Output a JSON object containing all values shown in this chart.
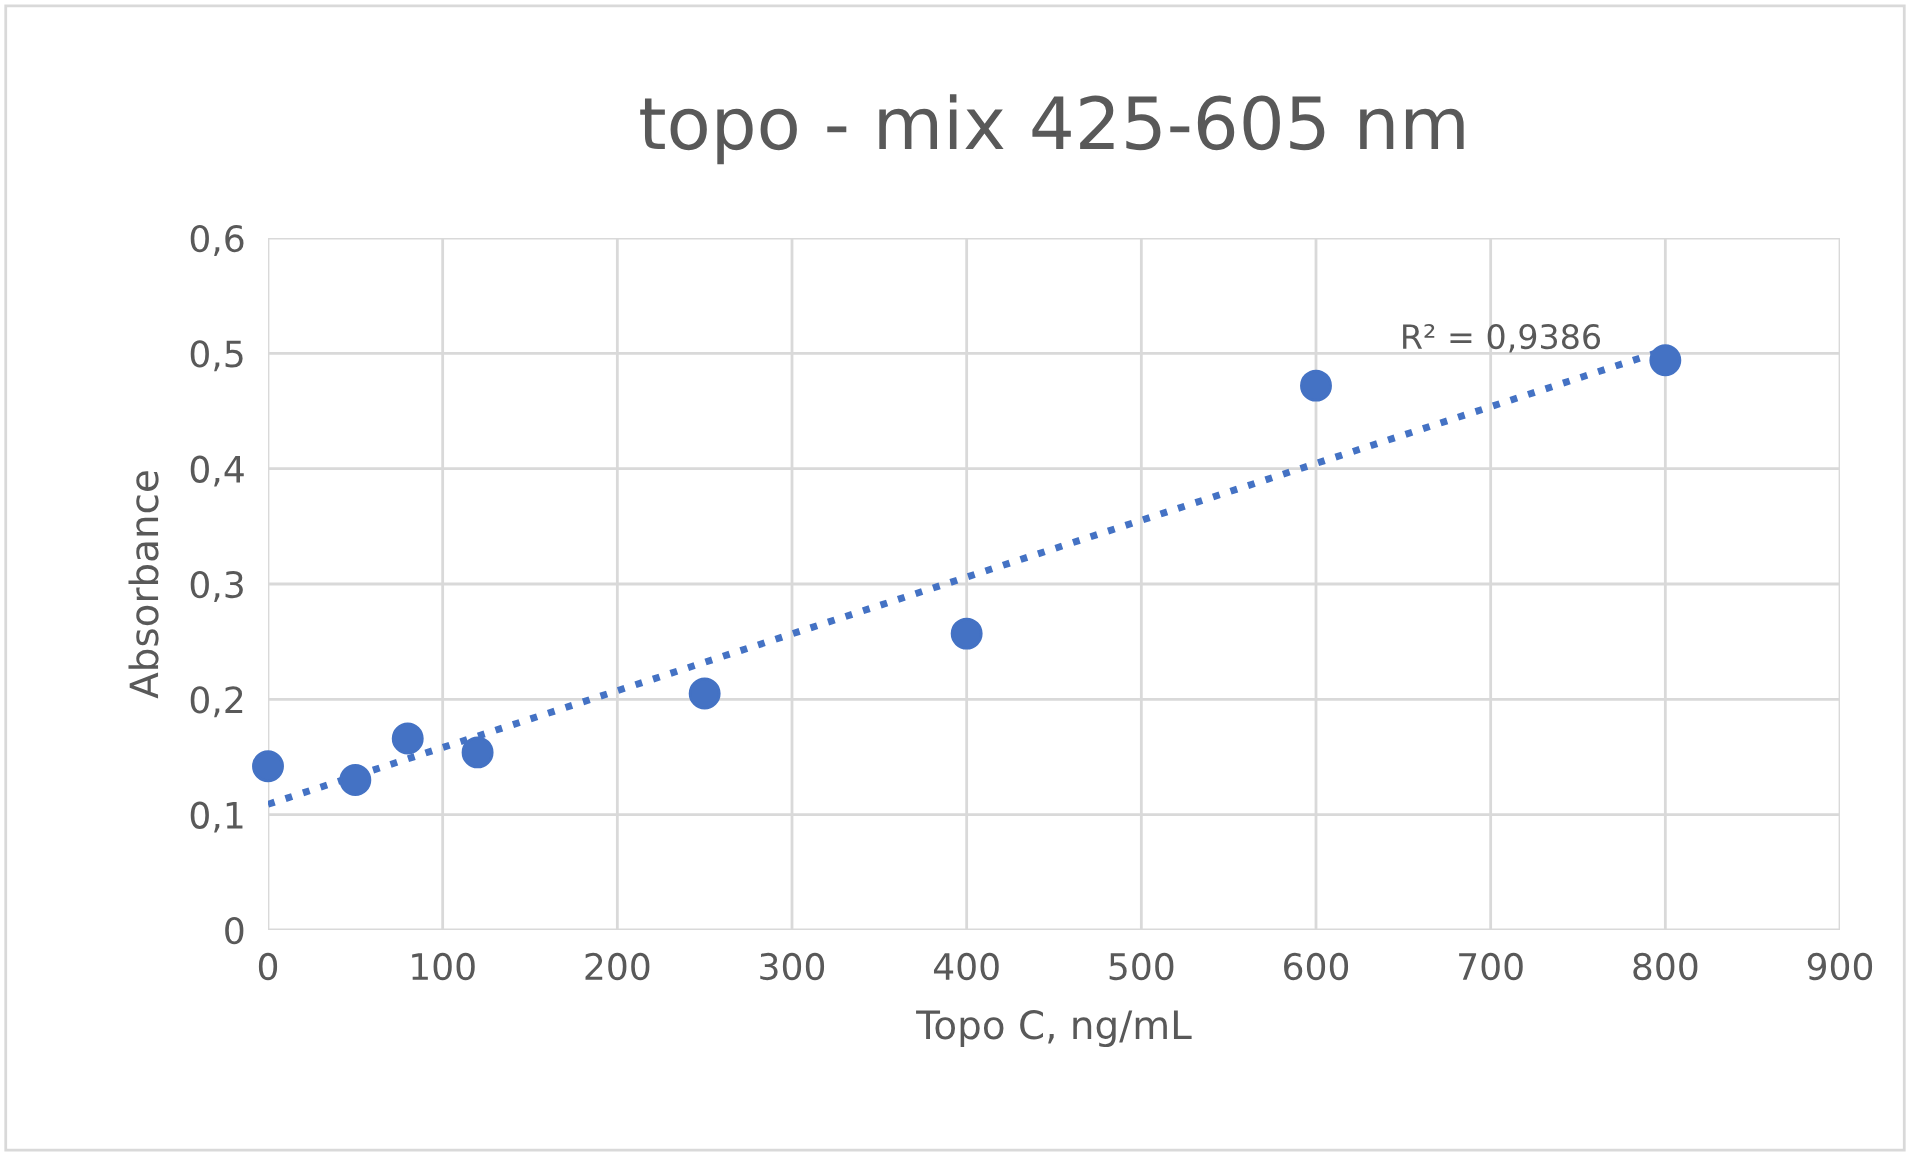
{
  "chart_data": {
    "type": "scatter",
    "title": "topo - mix 425-605 nm",
    "xlabel": "Topo C, ng/mL",
    "ylabel": "Absorbance",
    "series": [
      {
        "color": "#4472c4",
        "marker": "circle",
        "x": [
          0,
          50,
          80,
          120,
          250,
          400,
          600,
          800
        ],
        "values": [
          0.142,
          0.13,
          0.166,
          0.154,
          0.205,
          0.257,
          0.472,
          0.494
        ]
      },
      {
        "type": "line",
        "color": "#4472c4",
        "line_style": "dotted",
        "marker": "none",
        "x": [
          0,
          800
        ],
        "values": [
          0.109,
          0.503
        ]
      }
    ],
    "xlim": [
      0,
      900
    ],
    "xticks": [
      0,
      100,
      200,
      300,
      400,
      500,
      600,
      700,
      800,
      900
    ],
    "ylim": [
      0,
      0.6
    ],
    "yticks": [
      0,
      {
        "value": 0.1,
        "label": "0,1"
      },
      {
        "value": 0.2,
        "label": "0,2"
      },
      {
        "value": 0.3,
        "label": "0,3"
      },
      {
        "value": 0.4,
        "label": "0,4"
      },
      {
        "value": 0.5,
        "label": "0,5"
      },
      {
        "value": 0.6,
        "label": "0,6"
      }
    ],
    "grid": true,
    "annotations": [
      "R² = 0,9386"
    ]
  }
}
